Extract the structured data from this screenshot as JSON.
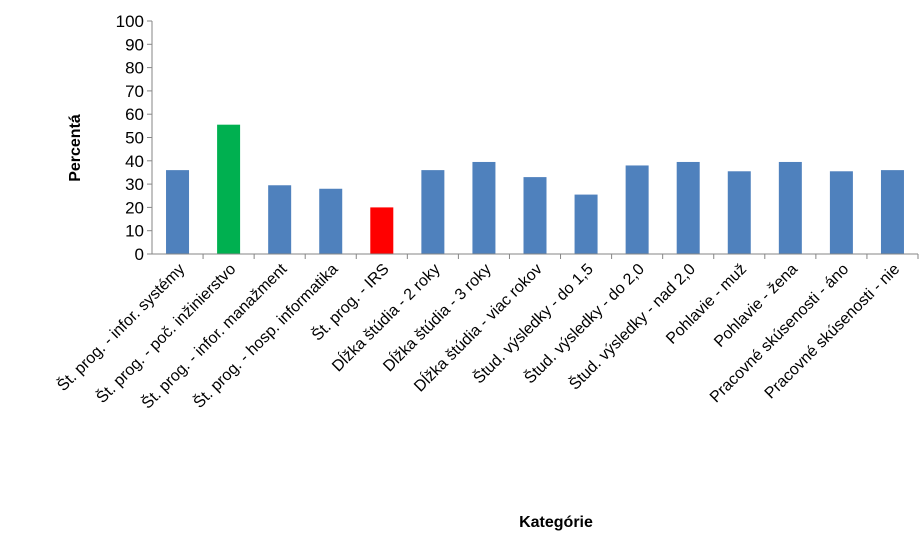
{
  "chart_data": {
    "type": "bar",
    "title": "",
    "xlabel": "Kategórie",
    "ylabel": "Percentá",
    "ylim": [
      0,
      100
    ],
    "yticks": [
      0,
      10,
      20,
      30,
      40,
      50,
      60,
      70,
      80,
      90,
      100
    ],
    "grid": false,
    "legend": "none",
    "categories": [
      "Št. prog. - infor. systémy",
      "Št. prog. - poč. inžinierstvo",
      "Št. prog. - infor. manažment",
      "Št. prog. - hosp. informatika",
      "Št. prog. - IRS",
      "Dĺžka štúdia - 2 roky",
      "Dĺžka štúdia - 3 roky",
      "Dĺžka štúdia - viac rokov",
      "Štud. výsledky - do 1,5",
      "Štud. výsledky - do 2,0",
      "Štud. výsledky - nad 2,0",
      "Pohlavie - muž",
      "Pohlavie - žena",
      "Pracovné skúsenosti - áno",
      "Pracovné skúsenosti - nie"
    ],
    "values": [
      36,
      55.5,
      29.5,
      28,
      20,
      36,
      39.5,
      33,
      25.5,
      38,
      39.5,
      35.5,
      39.5,
      35.5,
      36
    ],
    "colors": {
      "default": "#4F81BD",
      "highlight_max": "#00B050",
      "highlight_min": "#FF0000"
    },
    "bar_colors": [
      "default",
      "highlight_max",
      "default",
      "default",
      "highlight_min",
      "default",
      "default",
      "default",
      "default",
      "default",
      "default",
      "default",
      "default",
      "default",
      "default"
    ]
  }
}
